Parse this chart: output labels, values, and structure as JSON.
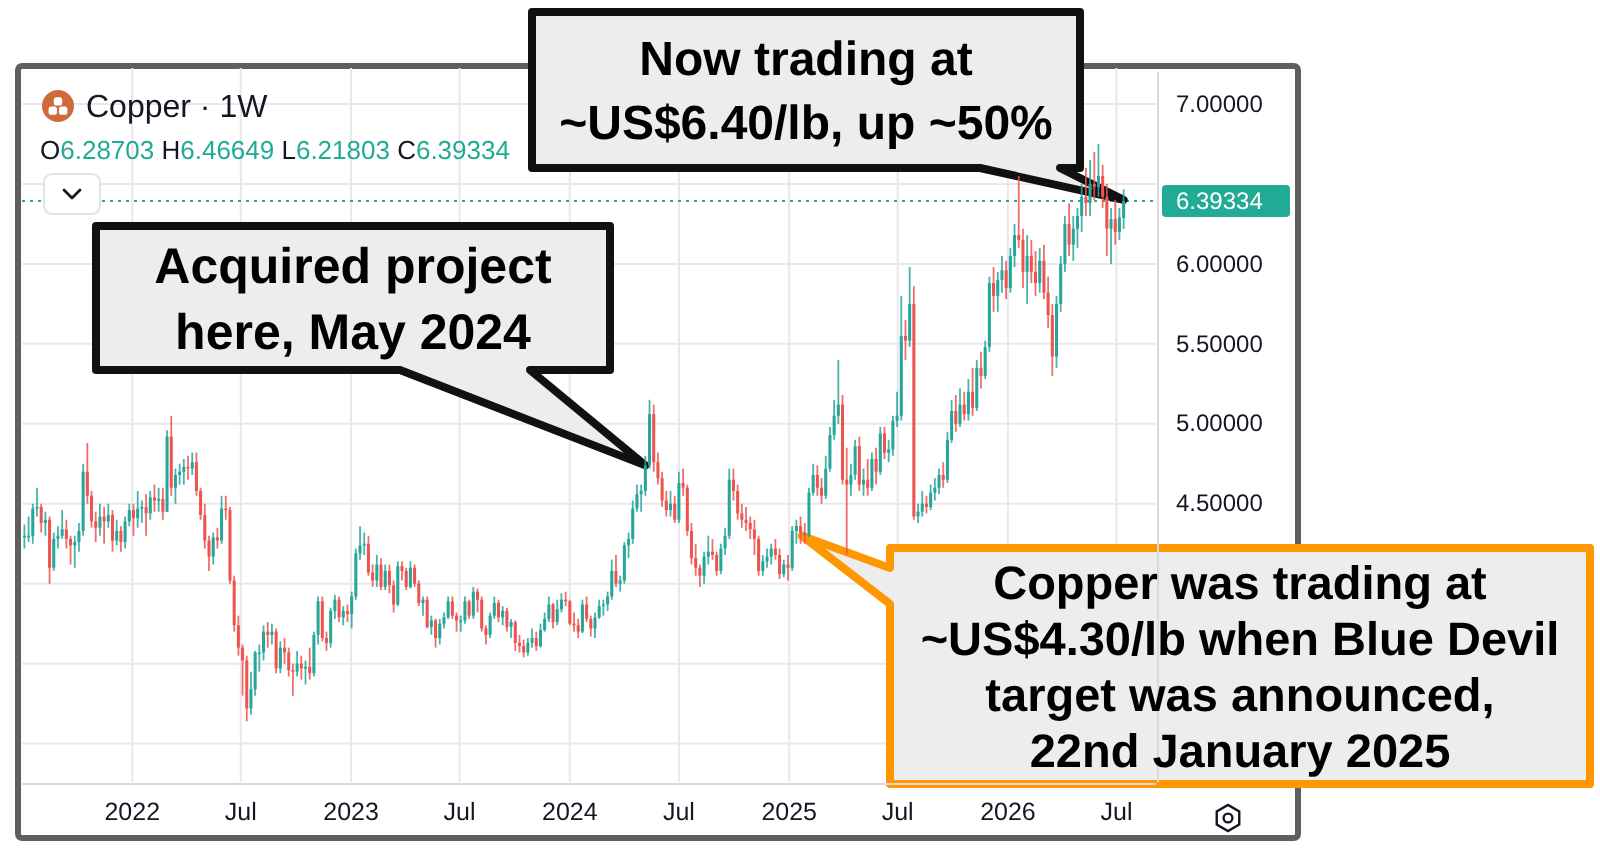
{
  "chart_data": {
    "type": "candlestick",
    "title": "Copper · 1W",
    "annotations": [
      "O6.28703 H6.46649 L6.21803 C6.39334",
      {
        "text": "Now trading at\n~US$6.40/lb, up ~50%",
        "x": "2026-07-13",
        "y": 6.4
      },
      {
        "text": "Acquired project\nhere, May 2024",
        "x": "2024-05-06",
        "y": 4.74
      },
      {
        "text": "Copper was trading at\n~US$4.30/lb when Blue Devil\ntarget was announced,\n22nd January 2025",
        "x": "2025-01-22",
        "y": 4.3
      }
    ],
    "x": [
      "2021-07-05",
      "2021-07-12",
      "2021-07-19",
      "2021-07-26",
      "2021-08-02",
      "2021-08-09",
      "2021-08-16",
      "2021-08-23",
      "2021-08-30",
      "2021-09-06",
      "2021-09-13",
      "2021-09-20",
      "2021-09-27",
      "2021-10-04",
      "2021-10-11",
      "2021-10-18",
      "2021-10-25",
      "2021-11-01",
      "2021-11-08",
      "2021-11-15",
      "2021-11-22",
      "2021-11-29",
      "2021-12-06",
      "2021-12-13",
      "2021-12-20",
      "2021-12-27",
      "2022-01-03",
      "2022-01-10",
      "2022-01-17",
      "2022-01-24",
      "2022-01-31",
      "2022-02-07",
      "2022-02-14",
      "2022-02-21",
      "2022-02-28",
      "2022-03-07",
      "2022-03-14",
      "2022-03-21",
      "2022-03-28",
      "2022-04-04",
      "2022-04-11",
      "2022-04-18",
      "2022-04-25",
      "2022-05-02",
      "2022-05-09",
      "2022-05-16",
      "2022-05-23",
      "2022-05-30",
      "2022-06-06",
      "2022-06-13",
      "2022-06-20",
      "2022-06-27",
      "2022-07-04",
      "2022-07-11",
      "2022-07-18",
      "2022-07-25",
      "2022-08-01",
      "2022-08-08",
      "2022-08-15",
      "2022-08-22",
      "2022-08-29",
      "2022-09-05",
      "2022-09-12",
      "2022-09-19",
      "2022-09-26",
      "2022-10-03",
      "2022-10-10",
      "2022-10-17",
      "2022-10-24",
      "2022-10-31",
      "2022-11-07",
      "2022-11-14",
      "2022-11-21",
      "2022-11-28",
      "2022-12-05",
      "2022-12-12",
      "2022-12-19",
      "2022-12-26",
      "2023-01-02",
      "2023-01-09",
      "2023-01-16",
      "2023-01-23",
      "2023-01-30",
      "2023-02-06",
      "2023-02-13",
      "2023-02-20",
      "2023-02-27",
      "2023-03-06",
      "2023-03-13",
      "2023-03-20",
      "2023-03-27",
      "2023-04-03",
      "2023-04-10",
      "2023-04-17",
      "2023-04-24",
      "2023-05-01",
      "2023-05-08",
      "2023-05-15",
      "2023-05-22",
      "2023-05-29",
      "2023-06-05",
      "2023-06-12",
      "2023-06-19",
      "2023-06-26",
      "2023-07-03",
      "2023-07-10",
      "2023-07-17",
      "2023-07-24",
      "2023-07-31",
      "2023-08-07",
      "2023-08-14",
      "2023-08-21",
      "2023-08-28",
      "2023-09-04",
      "2023-09-11",
      "2023-09-18",
      "2023-09-25",
      "2023-10-02",
      "2023-10-09",
      "2023-10-16",
      "2023-10-23",
      "2023-10-30",
      "2023-11-06",
      "2023-11-13",
      "2023-11-20",
      "2023-11-27",
      "2023-12-04",
      "2023-12-11",
      "2023-12-18",
      "2023-12-25",
      "2024-01-01",
      "2024-01-08",
      "2024-01-15",
      "2024-01-22",
      "2024-01-29",
      "2024-02-05",
      "2024-02-12",
      "2024-02-19",
      "2024-02-26",
      "2024-03-04",
      "2024-03-11",
      "2024-03-18",
      "2024-03-25",
      "2024-04-01",
      "2024-04-08",
      "2024-04-15",
      "2024-04-22",
      "2024-04-29",
      "2024-05-06",
      "2024-05-13",
      "2024-05-20",
      "2024-05-27",
      "2024-06-03",
      "2024-06-10",
      "2024-06-17",
      "2024-06-24",
      "2024-07-01",
      "2024-07-08",
      "2024-07-15",
      "2024-07-22",
      "2024-07-29",
      "2024-08-05",
      "2024-08-12",
      "2024-08-19",
      "2024-08-26",
      "2024-09-02",
      "2024-09-09",
      "2024-09-16",
      "2024-09-23",
      "2024-09-30",
      "2024-10-07",
      "2024-10-14",
      "2024-10-21",
      "2024-10-28",
      "2024-11-04",
      "2024-11-11",
      "2024-11-18",
      "2024-11-25",
      "2024-12-02",
      "2024-12-09",
      "2024-12-16",
      "2024-12-23",
      "2024-12-30",
      "2025-01-06",
      "2025-01-13",
      "2025-01-20",
      "2025-01-27",
      "2025-02-03",
      "2025-02-10",
      "2025-02-17",
      "2025-02-24",
      "2025-03-03",
      "2025-03-10",
      "2025-03-17",
      "2025-03-24",
      "2025-03-31",
      "2025-04-07",
      "2025-04-14",
      "2025-04-21",
      "2025-04-28",
      "2025-05-05",
      "2025-05-12",
      "2025-05-19",
      "2025-05-26",
      "2025-06-02",
      "2025-06-09",
      "2025-06-16",
      "2025-06-23",
      "2025-06-30",
      "2025-07-07",
      "2025-07-14",
      "2025-07-21",
      "2025-07-28",
      "2025-08-04",
      "2025-08-11",
      "2025-08-18",
      "2025-08-25",
      "2025-09-01",
      "2025-09-08",
      "2025-09-15",
      "2025-09-22",
      "2025-09-29",
      "2025-10-06",
      "2025-10-13",
      "2025-10-20",
      "2025-10-27",
      "2025-11-03",
      "2025-11-10",
      "2025-11-17",
      "2025-11-24",
      "2025-12-01",
      "2025-12-08",
      "2025-12-15",
      "2025-12-22",
      "2025-12-29",
      "2026-01-05",
      "2026-01-12",
      "2026-01-19",
      "2026-01-26",
      "2026-02-02",
      "2026-02-09",
      "2026-02-16",
      "2026-02-23",
      "2026-03-02",
      "2026-03-09",
      "2026-03-16",
      "2026-03-23",
      "2026-03-30",
      "2026-04-06",
      "2026-04-13",
      "2026-04-20",
      "2026-04-27",
      "2026-05-04",
      "2026-05-11",
      "2026-05-18",
      "2026-05-25",
      "2026-06-01",
      "2026-06-08",
      "2026-06-15",
      "2026-06-22",
      "2026-06-29",
      "2026-07-06",
      "2026-07-13"
    ],
    "ohlc": [
      [
        4.3,
        4.37,
        4.22,
        4.3
      ],
      [
        4.3,
        4.42,
        4.26,
        4.3
      ],
      [
        4.3,
        4.5,
        4.25,
        4.47
      ],
      [
        4.47,
        4.6,
        4.42,
        4.48
      ],
      [
        4.48,
        4.5,
        4.32,
        4.38
      ],
      [
        4.38,
        4.45,
        4.3,
        4.4
      ],
      [
        4.4,
        4.42,
        4.0,
        4.1
      ],
      [
        4.1,
        4.32,
        4.08,
        4.28
      ],
      [
        4.28,
        4.36,
        4.22,
        4.3
      ],
      [
        4.3,
        4.46,
        4.28,
        4.34
      ],
      [
        4.34,
        4.4,
        4.22,
        4.28
      ],
      [
        4.28,
        4.3,
        4.12,
        4.24
      ],
      [
        4.24,
        4.3,
        4.1,
        4.26
      ],
      [
        4.26,
        4.38,
        4.2,
        4.33
      ],
      [
        4.33,
        4.75,
        4.3,
        4.7
      ],
      [
        4.7,
        4.88,
        4.5,
        4.55
      ],
      [
        4.55,
        4.58,
        4.35,
        4.39
      ],
      [
        4.39,
        4.45,
        4.26,
        4.35
      ],
      [
        4.35,
        4.5,
        4.3,
        4.42
      ],
      [
        4.42,
        4.48,
        4.25,
        4.39
      ],
      [
        4.39,
        4.5,
        4.35,
        4.43
      ],
      [
        4.43,
        4.46,
        4.2,
        4.27
      ],
      [
        4.27,
        4.4,
        4.24,
        4.33
      ],
      [
        4.33,
        4.36,
        4.2,
        4.26
      ],
      [
        4.26,
        4.42,
        4.22,
        4.39
      ],
      [
        4.39,
        4.5,
        4.36,
        4.46
      ],
      [
        4.46,
        4.5,
        4.3,
        4.41
      ],
      [
        4.41,
        4.58,
        4.35,
        4.47
      ],
      [
        4.47,
        4.52,
        4.38,
        4.48
      ],
      [
        4.48,
        4.56,
        4.3,
        4.44
      ],
      [
        4.44,
        4.58,
        4.4,
        4.54
      ],
      [
        4.54,
        4.62,
        4.45,
        4.52
      ],
      [
        4.52,
        4.6,
        4.45,
        4.53
      ],
      [
        4.53,
        4.6,
        4.4,
        4.45
      ],
      [
        4.45,
        4.96,
        4.45,
        4.92
      ],
      [
        4.92,
        5.05,
        4.55,
        4.6
      ],
      [
        4.6,
        4.72,
        4.5,
        4.68
      ],
      [
        4.68,
        4.75,
        4.62,
        4.7
      ],
      [
        4.7,
        4.78,
        4.62,
        4.73
      ],
      [
        4.73,
        4.8,
        4.65,
        4.72
      ],
      [
        4.72,
        4.82,
        4.68,
        4.76
      ],
      [
        4.76,
        4.82,
        4.55,
        4.58
      ],
      [
        4.58,
        4.6,
        4.4,
        4.43
      ],
      [
        4.43,
        4.5,
        4.22,
        4.27
      ],
      [
        4.27,
        4.3,
        4.08,
        4.17
      ],
      [
        4.17,
        4.32,
        4.12,
        4.29
      ],
      [
        4.29,
        4.35,
        4.22,
        4.27
      ],
      [
        4.27,
        4.55,
        4.25,
        4.47
      ],
      [
        4.47,
        4.55,
        4.4,
        4.46
      ],
      [
        4.46,
        4.48,
        4.0,
        4.02
      ],
      [
        4.02,
        4.05,
        3.7,
        3.74
      ],
      [
        3.74,
        3.8,
        3.55,
        3.6
      ],
      [
        3.6,
        3.62,
        3.3,
        3.52
      ],
      [
        3.52,
        3.55,
        3.14,
        3.22
      ],
      [
        3.22,
        3.45,
        3.18,
        3.34
      ],
      [
        3.34,
        3.58,
        3.3,
        3.57
      ],
      [
        3.57,
        3.62,
        3.45,
        3.57
      ],
      [
        3.57,
        3.74,
        3.52,
        3.7
      ],
      [
        3.7,
        3.76,
        3.6,
        3.68
      ],
      [
        3.68,
        3.75,
        3.62,
        3.7
      ],
      [
        3.7,
        3.72,
        3.44,
        3.47
      ],
      [
        3.47,
        3.64,
        3.44,
        3.6
      ],
      [
        3.6,
        3.66,
        3.5,
        3.57
      ],
      [
        3.57,
        3.6,
        3.42,
        3.46
      ],
      [
        3.46,
        3.5,
        3.3,
        3.45
      ],
      [
        3.45,
        3.58,
        3.42,
        3.5
      ],
      [
        3.5,
        3.55,
        3.4,
        3.47
      ],
      [
        3.47,
        3.52,
        3.37,
        3.48
      ],
      [
        3.48,
        3.6,
        3.4,
        3.44
      ],
      [
        3.44,
        3.7,
        3.42,
        3.68
      ],
      [
        3.68,
        3.92,
        3.62,
        3.89
      ],
      [
        3.89,
        3.92,
        3.64,
        3.66
      ],
      [
        3.66,
        3.7,
        3.58,
        3.63
      ],
      [
        3.63,
        3.85,
        3.6,
        3.83
      ],
      [
        3.83,
        3.93,
        3.78,
        3.9
      ],
      [
        3.9,
        3.92,
        3.76,
        3.79
      ],
      [
        3.79,
        3.86,
        3.74,
        3.83
      ],
      [
        3.83,
        3.87,
        3.76,
        3.81
      ],
      [
        3.81,
        3.95,
        3.72,
        3.92
      ],
      [
        3.92,
        4.22,
        3.9,
        4.19
      ],
      [
        4.19,
        4.36,
        4.15,
        4.24
      ],
      [
        4.24,
        4.32,
        4.18,
        4.25
      ],
      [
        4.25,
        4.3,
        4.05,
        4.07
      ],
      [
        4.07,
        4.12,
        3.98,
        4.02
      ],
      [
        4.02,
        4.18,
        3.98,
        4.12
      ],
      [
        4.12,
        4.16,
        3.96,
        3.98
      ],
      [
        3.98,
        4.12,
        3.96,
        4.08
      ],
      [
        4.08,
        4.12,
        3.94,
        3.99
      ],
      [
        3.99,
        4.02,
        3.82,
        3.87
      ],
      [
        3.87,
        4.14,
        3.86,
        4.11
      ],
      [
        4.11,
        4.14,
        4.02,
        4.08
      ],
      [
        4.08,
        4.1,
        3.96,
        3.98
      ],
      [
        3.98,
        4.14,
        3.97,
        4.1
      ],
      [
        4.1,
        4.12,
        3.98,
        4.0
      ],
      [
        4.0,
        4.02,
        3.86,
        3.88
      ],
      [
        3.88,
        3.92,
        3.8,
        3.9
      ],
      [
        3.9,
        3.92,
        3.72,
        3.73
      ],
      [
        3.73,
        3.8,
        3.68,
        3.77
      ],
      [
        3.77,
        3.78,
        3.6,
        3.66
      ],
      [
        3.66,
        3.78,
        3.62,
        3.75
      ],
      [
        3.75,
        3.82,
        3.72,
        3.79
      ],
      [
        3.79,
        3.92,
        3.78,
        3.89
      ],
      [
        3.89,
        3.92,
        3.78,
        3.8
      ],
      [
        3.8,
        3.82,
        3.7,
        3.77
      ],
      [
        3.77,
        3.8,
        3.7,
        3.77
      ],
      [
        3.77,
        3.92,
        3.75,
        3.89
      ],
      [
        3.89,
        3.9,
        3.78,
        3.8
      ],
      [
        3.8,
        3.98,
        3.78,
        3.95
      ],
      [
        3.95,
        3.97,
        3.82,
        3.9
      ],
      [
        3.9,
        3.92,
        3.7,
        3.72
      ],
      [
        3.72,
        3.74,
        3.62,
        3.68
      ],
      [
        3.68,
        3.82,
        3.66,
        3.8
      ],
      [
        3.8,
        3.92,
        3.78,
        3.88
      ],
      [
        3.88,
        3.9,
        3.76,
        3.79
      ],
      [
        3.79,
        3.86,
        3.74,
        3.83
      ],
      [
        3.83,
        3.85,
        3.7,
        3.73
      ],
      [
        3.73,
        3.78,
        3.66,
        3.76
      ],
      [
        3.76,
        3.77,
        3.58,
        3.63
      ],
      [
        3.63,
        3.68,
        3.57,
        3.61
      ],
      [
        3.61,
        3.65,
        3.54,
        3.57
      ],
      [
        3.57,
        3.66,
        3.55,
        3.63
      ],
      [
        3.63,
        3.72,
        3.6,
        3.66
      ],
      [
        3.66,
        3.7,
        3.58,
        3.61
      ],
      [
        3.61,
        3.75,
        3.6,
        3.71
      ],
      [
        3.71,
        3.82,
        3.7,
        3.78
      ],
      [
        3.78,
        3.92,
        3.76,
        3.87
      ],
      [
        3.87,
        3.88,
        3.72,
        3.76
      ],
      [
        3.76,
        3.9,
        3.74,
        3.84
      ],
      [
        3.84,
        3.94,
        3.82,
        3.9
      ],
      [
        3.9,
        3.95,
        3.86,
        3.89
      ],
      [
        3.89,
        3.9,
        3.74,
        3.75
      ],
      [
        3.75,
        3.82,
        3.7,
        3.74
      ],
      [
        3.74,
        3.78,
        3.66,
        3.7
      ],
      [
        3.7,
        3.9,
        3.69,
        3.87
      ],
      [
        3.87,
        3.92,
        3.76,
        3.78
      ],
      [
        3.78,
        3.8,
        3.67,
        3.72
      ],
      [
        3.72,
        3.82,
        3.66,
        3.79
      ],
      [
        3.79,
        3.9,
        3.78,
        3.86
      ],
      [
        3.86,
        3.9,
        3.8,
        3.87
      ],
      [
        3.87,
        3.95,
        3.83,
        3.92
      ],
      [
        3.92,
        4.15,
        3.9,
        4.08
      ],
      [
        4.08,
        4.18,
        3.98,
        4.0
      ],
      [
        4.0,
        4.05,
        3.95,
        4.02
      ],
      [
        4.02,
        4.26,
        4.0,
        4.24
      ],
      [
        4.24,
        4.32,
        4.16,
        4.28
      ],
      [
        4.28,
        4.52,
        4.25,
        4.47
      ],
      [
        4.47,
        4.62,
        4.45,
        4.56
      ],
      [
        4.56,
        4.62,
        4.45,
        4.58
      ],
      [
        4.58,
        4.8,
        4.55,
        4.74
      ],
      [
        4.74,
        5.15,
        4.72,
        5.06
      ],
      [
        5.06,
        5.12,
        4.7,
        4.76
      ],
      [
        4.76,
        4.82,
        4.62,
        4.66
      ],
      [
        4.66,
        4.7,
        4.48,
        4.52
      ],
      [
        4.52,
        4.58,
        4.42,
        4.46
      ],
      [
        4.46,
        4.58,
        4.42,
        4.5
      ],
      [
        4.5,
        4.55,
        4.38,
        4.4
      ],
      [
        4.4,
        4.7,
        4.38,
        4.63
      ],
      [
        4.63,
        4.72,
        4.55,
        4.6
      ],
      [
        4.6,
        4.62,
        4.3,
        4.33
      ],
      [
        4.33,
        4.38,
        4.12,
        4.16
      ],
      [
        4.16,
        4.25,
        4.05,
        4.1
      ],
      [
        4.1,
        4.12,
        3.98,
        4.05
      ],
      [
        4.05,
        4.2,
        4.0,
        4.17
      ],
      [
        4.17,
        4.3,
        4.12,
        4.2
      ],
      [
        4.2,
        4.28,
        4.15,
        4.18
      ],
      [
        4.18,
        4.2,
        4.05,
        4.08
      ],
      [
        4.08,
        4.25,
        4.06,
        4.22
      ],
      [
        4.22,
        4.35,
        4.18,
        4.3
      ],
      [
        4.3,
        4.72,
        4.28,
        4.65
      ],
      [
        4.65,
        4.72,
        4.52,
        4.58
      ],
      [
        4.58,
        4.62,
        4.4,
        4.44
      ],
      [
        4.44,
        4.5,
        4.35,
        4.4
      ],
      [
        4.4,
        4.48,
        4.33,
        4.38
      ],
      [
        4.38,
        4.42,
        4.28,
        4.34
      ],
      [
        4.34,
        4.4,
        4.18,
        4.28
      ],
      [
        4.28,
        4.3,
        4.05,
        4.08
      ],
      [
        4.08,
        4.18,
        4.05,
        4.14
      ],
      [
        4.14,
        4.22,
        4.1,
        4.17
      ],
      [
        4.17,
        4.25,
        4.12,
        4.22
      ],
      [
        4.22,
        4.28,
        4.15,
        4.18
      ],
      [
        4.18,
        4.22,
        4.03,
        4.06
      ],
      [
        4.06,
        4.15,
        4.04,
        4.12
      ],
      [
        4.12,
        4.18,
        4.02,
        4.1
      ],
      [
        4.1,
        4.36,
        4.08,
        4.33
      ],
      [
        4.33,
        4.4,
        4.25,
        4.36
      ],
      [
        4.36,
        4.42,
        4.25,
        4.32
      ],
      [
        4.32,
        4.38,
        4.25,
        4.3
      ],
      [
        4.3,
        4.6,
        4.29,
        4.57
      ],
      [
        4.57,
        4.75,
        4.55,
        4.68
      ],
      [
        4.68,
        4.74,
        4.55,
        4.6
      ],
      [
        4.6,
        4.66,
        4.5,
        4.55
      ],
      [
        4.55,
        4.8,
        4.53,
        4.72
      ],
      [
        4.72,
        4.98,
        4.7,
        4.93
      ],
      [
        4.93,
        5.15,
        4.9,
        5.05
      ],
      [
        5.05,
        5.4,
        5.0,
        5.12
      ],
      [
        5.12,
        5.18,
        4.62,
        4.65
      ],
      [
        4.65,
        4.85,
        4.18,
        4.62
      ],
      [
        4.62,
        4.75,
        4.55,
        4.68
      ],
      [
        4.68,
        4.9,
        4.65,
        4.86
      ],
      [
        4.86,
        4.92,
        4.58,
        4.62
      ],
      [
        4.62,
        4.72,
        4.55,
        4.65
      ],
      [
        4.65,
        4.78,
        4.55,
        4.6
      ],
      [
        4.6,
        4.82,
        4.58,
        4.78
      ],
      [
        4.78,
        4.85,
        4.62,
        4.7
      ],
      [
        4.7,
        4.98,
        4.68,
        4.94
      ],
      [
        4.94,
        4.98,
        4.78,
        4.82
      ],
      [
        4.82,
        4.9,
        4.76,
        4.84
      ],
      [
        4.84,
        5.05,
        4.8,
        5.02
      ],
      [
        5.02,
        5.2,
        4.98,
        5.05
      ],
      [
        5.05,
        5.8,
        5.02,
        5.55
      ],
      [
        5.55,
        5.65,
        5.4,
        5.52
      ],
      [
        5.52,
        5.98,
        5.48,
        5.75
      ],
      [
        5.75,
        5.86,
        4.4,
        4.42
      ],
      [
        4.42,
        4.5,
        4.38,
        4.45
      ],
      [
        4.45,
        4.58,
        4.42,
        4.5
      ],
      [
        4.5,
        4.55,
        4.44,
        4.48
      ],
      [
        4.48,
        4.62,
        4.46,
        4.57
      ],
      [
        4.57,
        4.66,
        4.52,
        4.6
      ],
      [
        4.6,
        4.72,
        4.56,
        4.68
      ],
      [
        4.68,
        4.76,
        4.6,
        4.65
      ],
      [
        4.65,
        4.95,
        4.63,
        4.9
      ],
      [
        4.9,
        5.15,
        4.88,
        5.08
      ],
      [
        5.08,
        5.18,
        4.95,
        5.0
      ],
      [
        5.0,
        5.22,
        4.98,
        5.12
      ],
      [
        5.12,
        5.2,
        5.02,
        5.06
      ],
      [
        5.06,
        5.28,
        5.02,
        5.2
      ],
      [
        5.2,
        5.35,
        5.05,
        5.1
      ],
      [
        5.1,
        5.4,
        5.08,
        5.35
      ],
      [
        5.35,
        5.45,
        5.22,
        5.3
      ],
      [
        5.3,
        5.52,
        5.28,
        5.48
      ],
      [
        5.48,
        5.92,
        5.45,
        5.88
      ],
      [
        5.88,
        5.98,
        5.7,
        5.8
      ],
      [
        5.8,
        5.95,
        5.7,
        5.9
      ],
      [
        5.9,
        6.05,
        5.82,
        5.96
      ],
      [
        5.96,
        6.02,
        5.78,
        5.85
      ],
      [
        5.85,
        6.1,
        5.82,
        6.05
      ],
      [
        6.05,
        6.25,
        5.98,
        6.18
      ],
      [
        6.18,
        6.55,
        6.1,
        6.15
      ],
      [
        6.15,
        6.22,
        5.85,
        5.95
      ],
      [
        5.95,
        6.18,
        5.75,
        6.05
      ],
      [
        6.05,
        6.15,
        5.88,
        5.95
      ],
      [
        5.95,
        6.08,
        5.8,
        5.88
      ],
      [
        5.88,
        6.1,
        5.82,
        6.02
      ],
      [
        6.02,
        6.12,
        5.78,
        5.82
      ],
      [
        5.82,
        5.92,
        5.6,
        5.68
      ],
      [
        5.68,
        5.75,
        5.3,
        5.42
      ],
      [
        5.42,
        5.8,
        5.35,
        5.75
      ],
      [
        5.75,
        6.05,
        5.7,
        6.0
      ],
      [
        6.0,
        6.3,
        5.95,
        6.25
      ],
      [
        6.25,
        6.38,
        6.05,
        6.12
      ],
      [
        6.12,
        6.3,
        6.02,
        6.22
      ],
      [
        6.22,
        6.35,
        6.1,
        6.3
      ],
      [
        6.3,
        6.5,
        6.2,
        6.42
      ],
      [
        6.42,
        6.6,
        6.3,
        6.38
      ],
      [
        6.38,
        6.65,
        6.3,
        6.5
      ],
      [
        6.5,
        6.7,
        6.4,
        6.48
      ],
      [
        6.48,
        6.75,
        6.42,
        6.55
      ],
      [
        6.55,
        6.62,
        6.35,
        6.42
      ],
      [
        6.42,
        6.5,
        6.05,
        6.22
      ],
      [
        6.22,
        6.35,
        6.0,
        6.28
      ],
      [
        6.28,
        6.4,
        6.12,
        6.2
      ],
      [
        6.2,
        6.35,
        6.15,
        6.29
      ],
      [
        6.28703,
        6.46649,
        6.21803,
        6.39334
      ]
    ],
    "xlim": [
      "2021-07-01",
      "2026-09-05"
    ],
    "ylim": [
      2.76,
      7.2
    ],
    "xticks": [
      {
        "value": "2022-01-01",
        "label": "2022"
      },
      {
        "value": "2022-07-01",
        "label": "Jul"
      },
      {
        "value": "2023-01-01",
        "label": "2023"
      },
      {
        "value": "2023-07-01",
        "label": "Jul"
      },
      {
        "value": "2024-01-01",
        "label": "2024"
      },
      {
        "value": "2024-07-01",
        "label": "Jul"
      },
      {
        "value": "2025-01-01",
        "label": "2025"
      },
      {
        "value": "2025-07-01",
        "label": "Jul"
      },
      {
        "value": "2026-01-01",
        "label": "2026"
      },
      {
        "value": "2026-07-01",
        "label": "Jul"
      }
    ],
    "yticks": [
      {
        "value": 3,
        "label": null
      },
      {
        "value": 3.5,
        "label": null
      },
      {
        "value": 4,
        "label": null
      },
      {
        "value": 4.5,
        "label": "4.50000"
      },
      {
        "value": 5,
        "label": "5.00000"
      },
      {
        "value": 5.5,
        "label": "5.50000"
      },
      {
        "value": 6,
        "label": "6.00000"
      },
      {
        "value": 6.5,
        "label": null
      },
      {
        "value": 7,
        "label": "7.00000"
      }
    ],
    "grid": true,
    "ref_lines": [
      {
        "axis": "y",
        "value": 6.39334,
        "label": "6.39334",
        "color": "#22ab94",
        "line_style": "dotted"
      }
    ]
  }
}
